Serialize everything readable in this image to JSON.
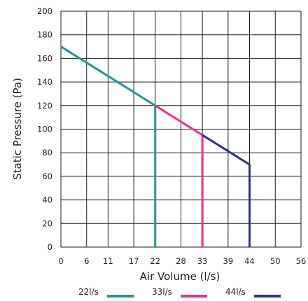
{
  "chart_data": {
    "type": "line",
    "xlabel": "Air Volume (l/s)",
    "ylabel": "Static Pressure (Pa)",
    "xlim": [
      0,
      56
    ],
    "ylim": [
      0,
      200
    ],
    "x_ticks": [
      0,
      6,
      11,
      17,
      22,
      28,
      33,
      39,
      44,
      50,
      56
    ],
    "y_ticks": [
      0,
      20,
      40,
      60,
      80,
      100,
      120,
      140,
      160,
      180,
      200
    ],
    "grid": true,
    "legend_position": "bottom",
    "series": [
      {
        "name": "22l/s",
        "color": "#1e9a96",
        "points": [
          [
            0,
            170
          ],
          [
            22,
            120
          ],
          [
            22,
            0
          ]
        ]
      },
      {
        "name": "33l/s",
        "color": "#e8338e",
        "points": [
          [
            22,
            120
          ],
          [
            33,
            95
          ],
          [
            33,
            0
          ]
        ]
      },
      {
        "name": "44l/s",
        "color": "#2a3585",
        "points": [
          [
            33,
            95
          ],
          [
            44,
            70
          ],
          [
            44,
            0
          ]
        ]
      }
    ]
  }
}
